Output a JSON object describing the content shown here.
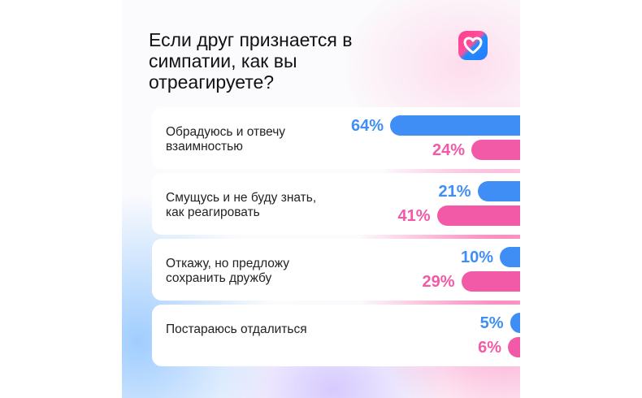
{
  "title": "Если друг признается в симпатии, как вы отреагируете?",
  "colors": {
    "series_a": "#3f8ef5",
    "series_b": "#f25aa8"
  },
  "app_icon": "heart-icon",
  "chart_data": {
    "type": "bar",
    "orientation": "horizontal",
    "title": "Если друг признается в симпатии, как вы отреагируете?",
    "categories": [
      "Обрадуюсь и отвечу взаимностью",
      "Смущусь и не буду знать, как реагировать",
      "Откажу, но предложу сохранить дружбу",
      "Постараюсь отдалиться"
    ],
    "series": [
      {
        "values": [
          64,
          21,
          10,
          5
        ],
        "labels": [
          "64%",
          "21%",
          "10%",
          "5%"
        ],
        "color": "#3f8ef5"
      },
      {
        "values": [
          24,
          41,
          29,
          6
        ],
        "labels": [
          "24%",
          "41%",
          "29%",
          "6%"
        ],
        "color": "#f25aa8"
      }
    ],
    "unit": "%",
    "xlim": [
      0,
      100
    ],
    "legend": "none",
    "grid": false
  }
}
